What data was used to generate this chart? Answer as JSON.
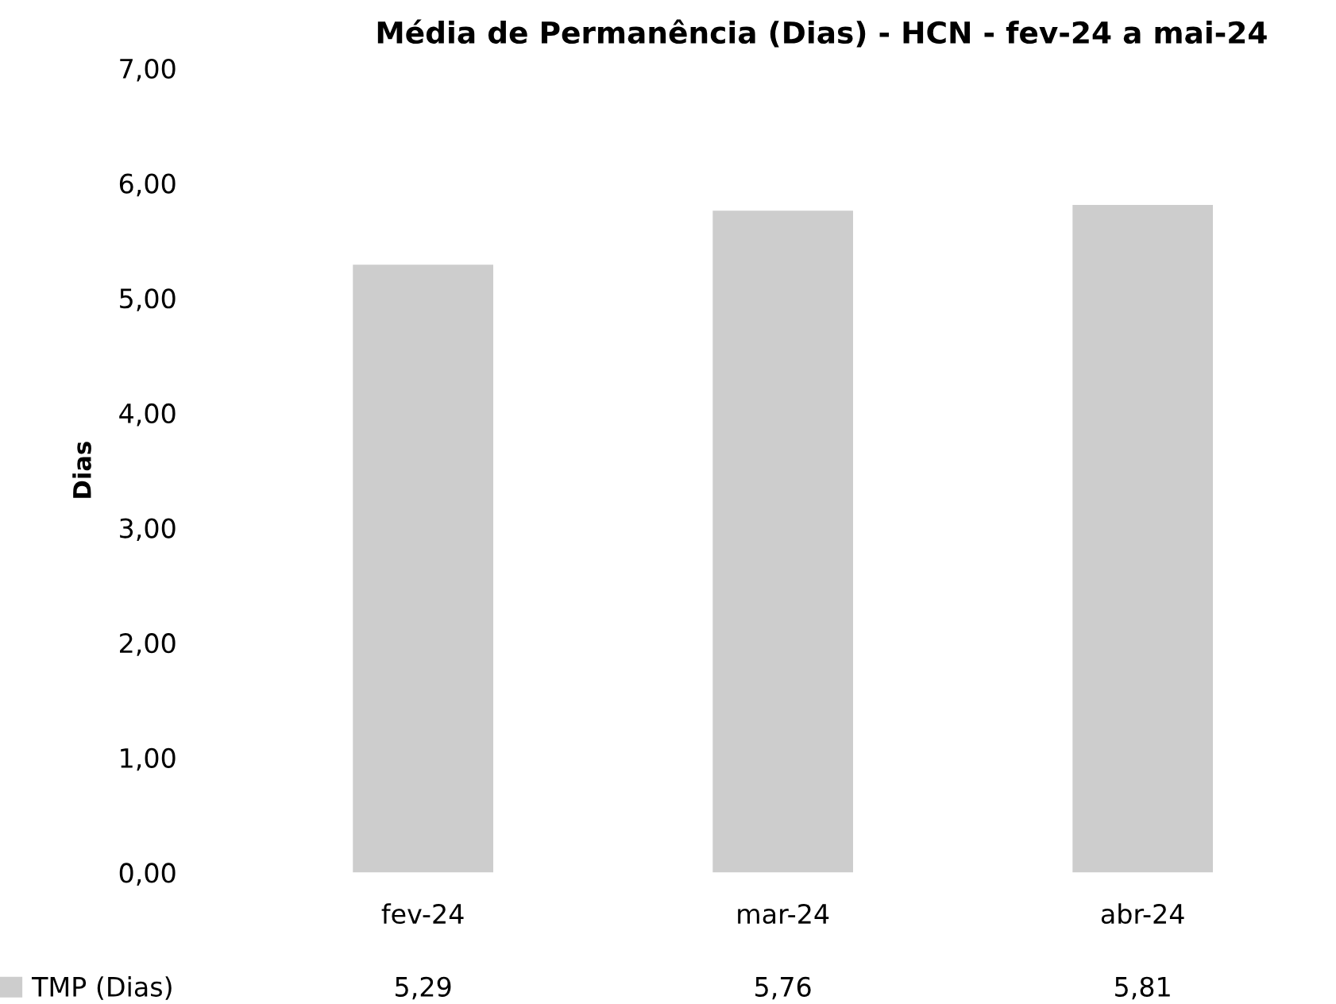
{
  "chart_data": {
    "type": "bar",
    "title": "Média de Permanência (Dias) - HCN - fev-24 a mai-24",
    "ylabel": "Dias",
    "categories": [
      "fev-24",
      "mar-24",
      "abr-24"
    ],
    "series": [
      {
        "name": "TMP (Dias)",
        "color": "#cdcdcd",
        "values": [
          5.29,
          5.76,
          5.81
        ],
        "value_labels": [
          "5,29",
          "5,76",
          "5,81"
        ]
      }
    ],
    "ylim": [
      0,
      7
    ],
    "yticks": [
      {
        "value": 0,
        "label": "0,00"
      },
      {
        "value": 1,
        "label": "1,00"
      },
      {
        "value": 2,
        "label": "2,00"
      },
      {
        "value": 3,
        "label": "3,00"
      },
      {
        "value": 4,
        "label": "4,00"
      },
      {
        "value": 5,
        "label": "5,00"
      },
      {
        "value": 6,
        "label": "6,00"
      },
      {
        "value": 7,
        "label": "7,00"
      }
    ],
    "grid": false,
    "legend": "bottom left"
  }
}
